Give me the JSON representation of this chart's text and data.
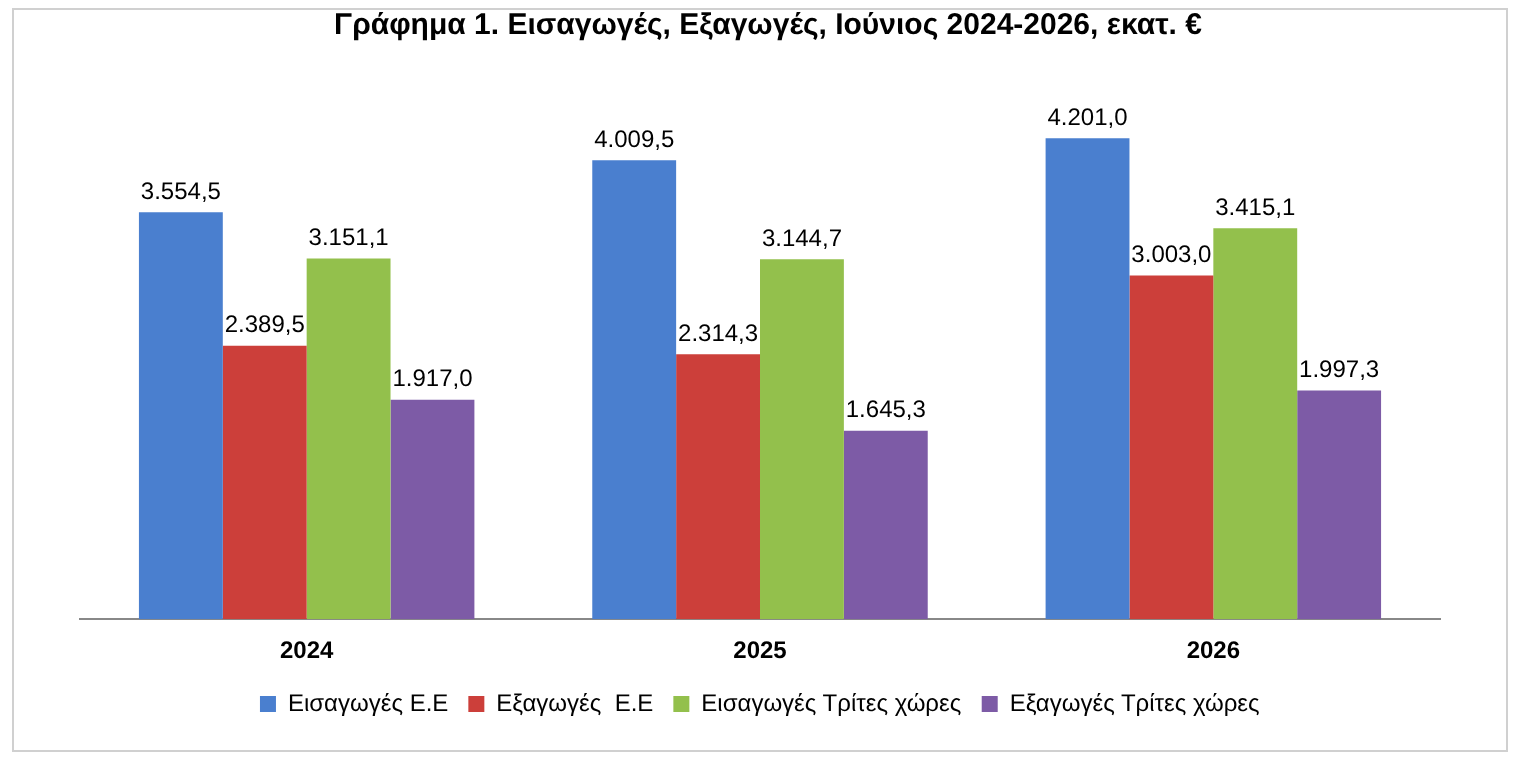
{
  "chart_data": {
    "type": "bar",
    "title": "Γράφημα 1. Εισαγωγές, Εξαγωγές, Ιούνιος 2024-2026, εκατ. €",
    "categories": [
      "2024",
      "2025",
      "2026"
    ],
    "series": [
      {
        "name": "Εισαγωγές Ε.Ε",
        "color": "#4a7fcf",
        "values": [
          3554.5,
          4009.5,
          4201.0
        ],
        "value_labels": [
          "3.554,5",
          "4.009,5",
          "4.201,0"
        ]
      },
      {
        "name": "Εξαγωγές  Ε.Ε",
        "color": "#cc3f3a",
        "values": [
          2389.5,
          2314.3,
          3003.0
        ],
        "value_labels": [
          "2.389,5",
          "2.314,3",
          "3.003,0"
        ]
      },
      {
        "name": "Εισαγωγές Τρίτες χώρες",
        "color": "#93c04c",
        "values": [
          3151.1,
          3144.7,
          3415.1
        ],
        "value_labels": [
          "3.151,1",
          "3.144,7",
          "3.415,1"
        ]
      },
      {
        "name": "Εξαγωγές Τρίτες χώρες",
        "color": "#7d5ba6",
        "values": [
          1917.0,
          1645.3,
          1997.3
        ],
        "value_labels": [
          "1.917,0",
          "1.645,3",
          "1.997,3"
        ]
      }
    ],
    "legend": "bottom",
    "grid": false
  }
}
